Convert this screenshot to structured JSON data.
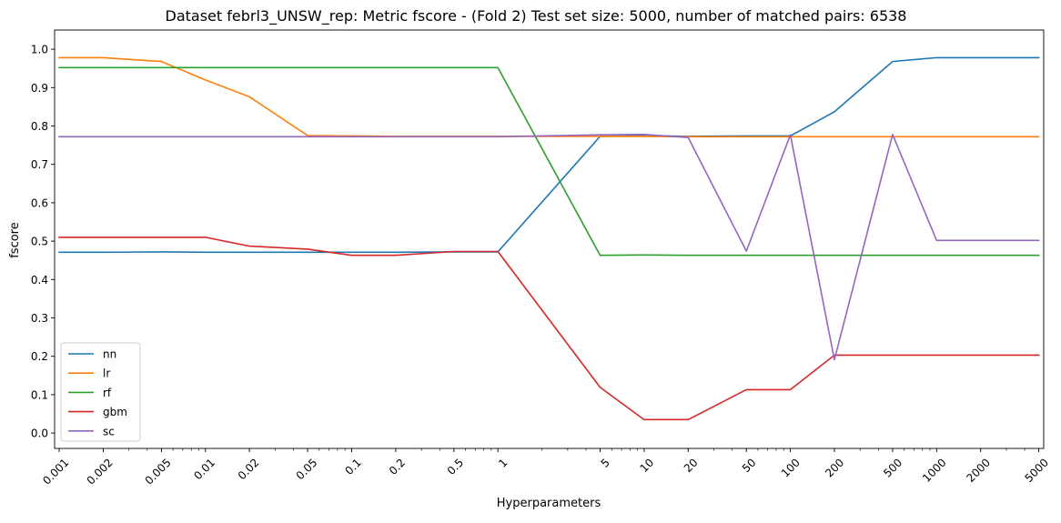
{
  "chart_data": {
    "type": "line",
    "title": "Dataset febrl3_UNSW_rep: Metric fscore - (Fold 2) Test set size: 5000, number of matched pairs: 6538",
    "xlabel": "Hyperparameters",
    "ylabel": "fscore",
    "xscale": "log",
    "xlim": [
      0.00093,
      5400
    ],
    "ylim": [
      -0.04,
      1.05
    ],
    "grid": false,
    "legend_position": "lower-left",
    "x_ticks": [
      {
        "value": 0.001,
        "label": "0.001"
      },
      {
        "value": 0.002,
        "label": "0.002"
      },
      {
        "value": 0.005,
        "label": "0.005"
      },
      {
        "value": 0.01,
        "label": "0.01"
      },
      {
        "value": 0.02,
        "label": "0.02"
      },
      {
        "value": 0.05,
        "label": "0.05"
      },
      {
        "value": 0.1,
        "label": "0.1"
      },
      {
        "value": 0.2,
        "label": "0.2"
      },
      {
        "value": 0.5,
        "label": "0.5"
      },
      {
        "value": 1,
        "label": "1"
      },
      {
        "value": 5,
        "label": "5"
      },
      {
        "value": 10,
        "label": "10"
      },
      {
        "value": 20,
        "label": "20"
      },
      {
        "value": 50,
        "label": "50"
      },
      {
        "value": 100,
        "label": "100"
      },
      {
        "value": 200,
        "label": "200"
      },
      {
        "value": 500,
        "label": "500"
      },
      {
        "value": 1000,
        "label": "1000"
      },
      {
        "value": 2000,
        "label": "2000"
      },
      {
        "value": 5000,
        "label": "5000"
      }
    ],
    "y_ticks": [
      {
        "value": 0.0,
        "label": "0.0"
      },
      {
        "value": 0.1,
        "label": "0.1"
      },
      {
        "value": 0.2,
        "label": "0.2"
      },
      {
        "value": 0.3,
        "label": "0.3"
      },
      {
        "value": 0.4,
        "label": "0.4"
      },
      {
        "value": 0.5,
        "label": "0.5"
      },
      {
        "value": 0.6,
        "label": "0.6"
      },
      {
        "value": 0.7,
        "label": "0.7"
      },
      {
        "value": 0.8,
        "label": "0.8"
      },
      {
        "value": 0.9,
        "label": "0.9"
      },
      {
        "value": 1.0,
        "label": "1.0"
      }
    ],
    "x": [
      0.001,
      0.002,
      0.005,
      0.01,
      0.02,
      0.05,
      0.1,
      0.2,
      0.5,
      1,
      5,
      10,
      20,
      50,
      100,
      200,
      500,
      1000,
      2000,
      5000
    ],
    "series": [
      {
        "name": "nn",
        "color": "#1f77b4",
        "values": [
          0.471,
          0.471,
          0.472,
          0.471,
          0.471,
          0.471,
          0.471,
          0.471,
          0.472,
          0.472,
          0.773,
          0.775,
          0.773,
          0.774,
          0.774,
          0.837,
          0.968,
          0.978,
          0.978,
          0.978
        ]
      },
      {
        "name": "lr",
        "color": "#ff7f0e",
        "values": [
          0.978,
          0.978,
          0.968,
          0.92,
          0.876,
          0.775,
          0.774,
          0.773,
          0.773,
          0.773,
          0.773,
          0.773,
          0.772,
          0.772,
          0.772,
          0.772,
          0.772,
          0.772,
          0.772,
          0.772
        ]
      },
      {
        "name": "rf",
        "color": "#2ca02c",
        "values": [
          0.952,
          0.952,
          0.952,
          0.952,
          0.952,
          0.952,
          0.952,
          0.952,
          0.952,
          0.952,
          0.463,
          0.464,
          0.463,
          0.463,
          0.463,
          0.463,
          0.463,
          0.463,
          0.463,
          0.463
        ]
      },
      {
        "name": "gbm",
        "color": "#d62728",
        "values": [
          0.51,
          0.51,
          0.51,
          0.51,
          0.487,
          0.479,
          0.463,
          0.463,
          0.473,
          0.473,
          0.119,
          0.035,
          0.035,
          0.113,
          0.113,
          0.203,
          0.203,
          0.203,
          0.203,
          0.203
        ]
      },
      {
        "name": "sc",
        "color": "#9467bd",
        "values": [
          0.772,
          0.772,
          0.772,
          0.772,
          0.772,
          0.772,
          0.772,
          0.772,
          0.772,
          0.772,
          0.777,
          0.778,
          0.77,
          0.474,
          0.777,
          0.191,
          0.778,
          0.502,
          0.502,
          0.502
        ]
      }
    ]
  }
}
